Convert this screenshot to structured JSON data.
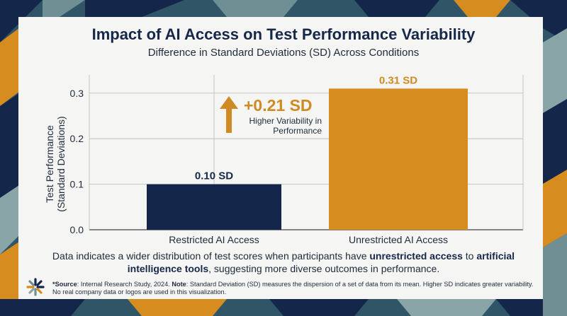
{
  "title": "Impact of AI Access on Test Performance Variability",
  "subtitle": "Difference in Standard Deviations (SD) Across Conditions",
  "chart_data": {
    "type": "bar",
    "categories": [
      "Restricted AI Access",
      "Unrestricted AI Access"
    ],
    "values": [
      0.1,
      0.31
    ],
    "value_labels": [
      "0.10 SD",
      "0.31 SD"
    ],
    "bar_colors": [
      "#14274a",
      "#d68c1f"
    ],
    "ylabel_line1": "Test Performance",
    "ylabel_line2": "(Standard Deviations)",
    "ylim": [
      0,
      0.34
    ],
    "yticks": [
      0.0,
      0.1,
      0.2,
      0.3
    ],
    "ytick_labels": [
      "0.0",
      "0.1",
      "0.2",
      "0.3"
    ],
    "grid": true,
    "annotation": {
      "value": "+0.21 SD",
      "text": "Higher Variability in Performance",
      "color": "#cf8a24"
    }
  },
  "caption": {
    "part1": "Data indicates a wider distribution of test scores when participants have ",
    "bold1": "unrestricted access",
    "part2": " to ",
    "bold2": "artificial intelligence tools",
    "part3": ", suggesting more diverse outcomes in performance."
  },
  "source": {
    "source_label": "*Source",
    "source_text": ": Internal Research Study, 2024. ",
    "note_label": "Note",
    "note_text": ": Standard Deviation (SD) measures the dispersion of a set of data from its mean. Higher SD indicates greater variability. No real company data or logos are used in this visualization."
  },
  "logo_icon": "asterisk-logo-icon"
}
